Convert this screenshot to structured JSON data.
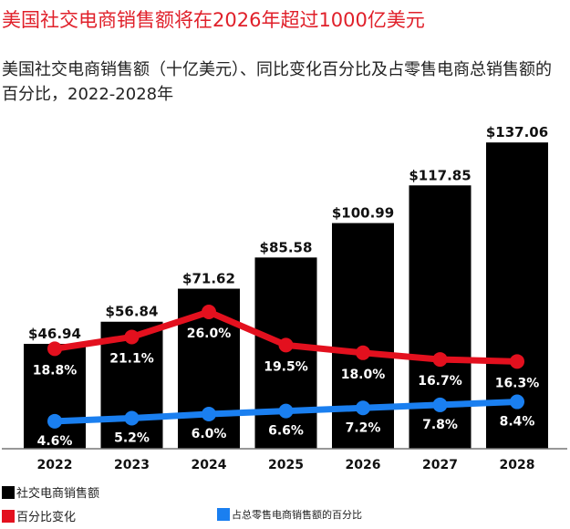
{
  "chart_data": {
    "type": "bar",
    "title": "美国社交电商销售额将在2026年超过1000亿美元",
    "subtitle": "美国社交电商销售额（十亿美元）、同比变化百分比及占零售电商总销售额的百分比，2022-2028年",
    "categories": [
      "2022",
      "2023",
      "2024",
      "2025",
      "2026",
      "2027",
      "2028"
    ],
    "series": [
      {
        "name": "社交电商销售额",
        "type": "bar",
        "color": "#000000",
        "values": [
          46.94,
          56.84,
          71.62,
          85.58,
          100.99,
          117.85,
          137.06
        ],
        "labels": [
          "$46.94",
          "$56.84",
          "$71.62",
          "$85.58",
          "$100.99",
          "$117.85",
          "$137.06"
        ]
      },
      {
        "name": "百分比变化",
        "type": "line",
        "color": "#e3101e",
        "values": [
          18.8,
          21.1,
          26.0,
          19.5,
          18.0,
          16.7,
          16.3
        ],
        "labels": [
          "18.8%",
          "21.1%",
          "26.0%",
          "19.5%",
          "18.0%",
          "16.7%",
          "16.3%"
        ]
      },
      {
        "name": "占总零售电商销售额的百分比",
        "type": "line",
        "color": "#1a7ff0",
        "values": [
          4.6,
          5.2,
          6.0,
          6.6,
          7.2,
          7.8,
          8.4
        ],
        "labels": [
          "4.6%",
          "5.2%",
          "6.0%",
          "6.6%",
          "7.2%",
          "7.8%",
          "8.4%"
        ]
      }
    ],
    "grid": false
  },
  "legend": {
    "sales": "社交电商销售额",
    "change": "百分比变化",
    "share": "占总零售电商销售额的百分比"
  }
}
